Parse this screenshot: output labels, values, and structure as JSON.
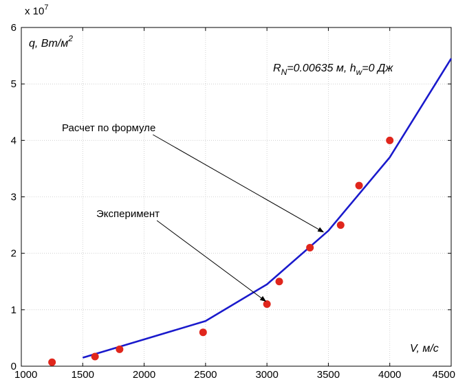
{
  "chart_data": {
    "type": "scatter",
    "multiplier_label": "x 10",
    "multiplier_exp": "7",
    "ylabel_main": "q, Вт/м",
    "ylabel_sup": "2",
    "xlabel": "V, м/с",
    "params": {
      "r_main": "R",
      "r_sub": "N",
      "r_rest": "=0.00635 м, h",
      "h_sub": "w",
      "h_rest": "=0 Дж"
    },
    "xlim": [
      1000,
      4500
    ],
    "ylim": [
      0,
      6
    ],
    "x_ticks": [
      1000,
      1500,
      2000,
      2500,
      3000,
      3500,
      4000,
      4500
    ],
    "y_ticks": [
      0,
      1,
      2,
      3,
      4,
      5,
      6
    ],
    "grid": true,
    "annotations": [
      {
        "text": "Расчет по формуле",
        "target_series": "formula"
      },
      {
        "text": "Эксперимент",
        "target_series": "experiment"
      }
    ],
    "series": [
      {
        "id": "formula",
        "kind": "line",
        "color": "#1a1acc",
        "x": [
          1500,
          2500,
          3000,
          3500,
          4000,
          4500
        ],
        "y": [
          0.15,
          0.8,
          1.45,
          2.4,
          3.7,
          5.45
        ]
      },
      {
        "id": "experiment",
        "kind": "scatter",
        "color": "#e0261c",
        "x": [
          1250,
          1600,
          1800,
          2480,
          3000,
          3100,
          3350,
          3600,
          3750,
          4000
        ],
        "y": [
          0.07,
          0.17,
          0.3,
          0.6,
          1.1,
          1.5,
          2.1,
          2.5,
          3.2,
          4.0
        ]
      }
    ]
  }
}
